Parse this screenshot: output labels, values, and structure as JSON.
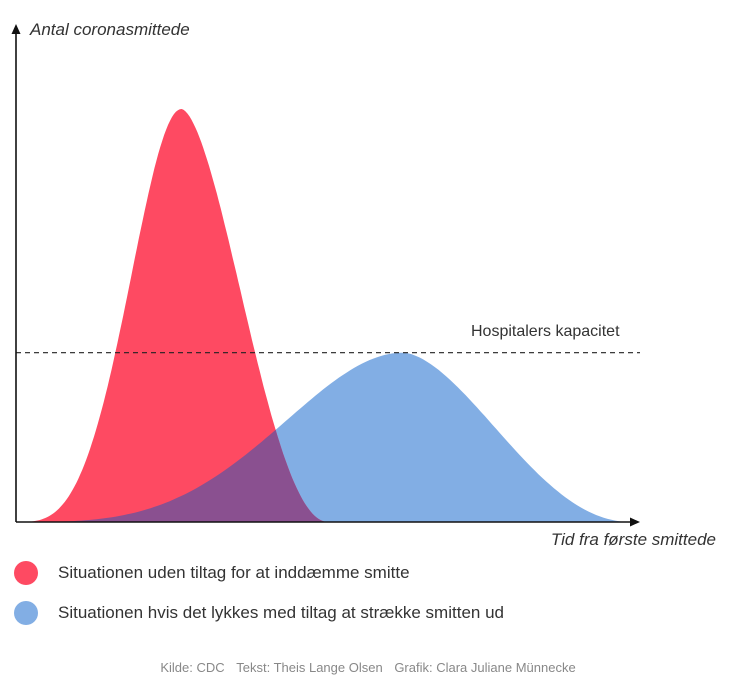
{
  "chart_data": {
    "type": "area",
    "ylabel": "Antal coronasmittede",
    "xlabel": "Tid fra første smittede",
    "reference_line": {
      "label": "Hospitalers kapacitet",
      "y": 0.41,
      "style": "dashed"
    },
    "xlim": [
      0,
      1
    ],
    "ylim": [
      0,
      1
    ],
    "series": [
      {
        "name": "Situationen uden tiltag for at inddæmme smitte",
        "color": "#fe4a62",
        "shape": "peak",
        "peak_x": 0.265,
        "peak_y": 1.0,
        "start_x": 0.0,
        "end_x": 0.5
      },
      {
        "name": "Situationen hvis det lykkes med tiltag at strække smitten ud",
        "color": "#82aee4",
        "shape": "peak",
        "peak_x": 0.62,
        "peak_y": 0.41,
        "start_x": 0.0,
        "end_x": 0.985
      }
    ],
    "overlap_color": "#8a5090",
    "grid": false,
    "legend": "bottom-left"
  },
  "credits": {
    "source": "Kilde: CDC",
    "text": "Tekst: Theis Lange Olsen",
    "graphics": "Grafik: Clara Juliane Münnecke"
  }
}
